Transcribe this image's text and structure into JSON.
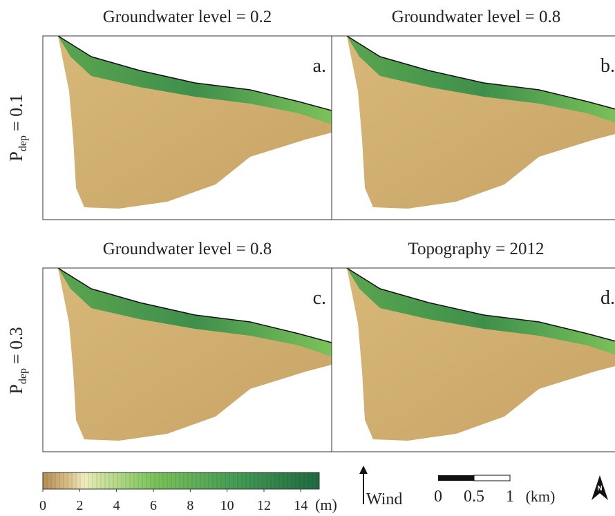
{
  "panels": [
    {
      "title": "Groundwater level = 0.2",
      "letter": "a."
    },
    {
      "title": "Groundwater level = 0.8",
      "letter": "b."
    },
    {
      "title": "Groundwater level = 0.8",
      "letter": "c."
    },
    {
      "title": "Topography = 2012",
      "letter": "d."
    }
  ],
  "rows": [
    {
      "symbol": "P",
      "subscript": "dep",
      "value_text": "= 0.1"
    },
    {
      "symbol": "P",
      "subscript": "dep",
      "value_text": "= 0.3"
    }
  ],
  "colorbar": {
    "lim": [
      0,
      15
    ],
    "ticks": [
      0,
      2,
      4,
      6,
      8,
      10,
      12,
      14
    ],
    "unit": "(m)"
  },
  "wind": "Wind",
  "scale_bar": {
    "lim": [
      0,
      1
    ],
    "ticks": [
      0,
      0.5,
      1
    ],
    "unit": "(km)"
  },
  "north": "N"
}
